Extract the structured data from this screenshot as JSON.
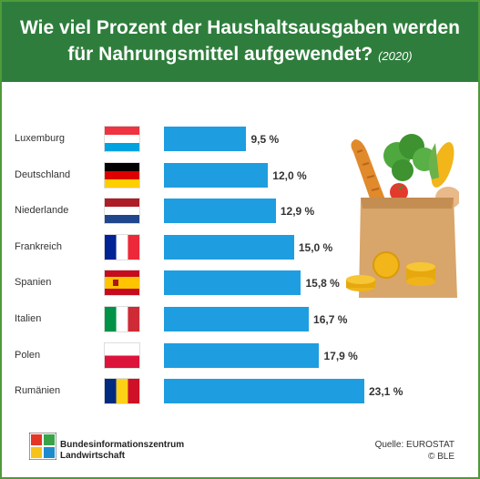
{
  "header": {
    "title_line1": "Wie viel Prozent der Haushaltsausgaben werden",
    "title_line2": "für Nahrungsmittel aufgewendet?",
    "year": "(2020)"
  },
  "chart_data": {
    "type": "bar",
    "orientation": "horizontal",
    "title": "Wie viel Prozent der Haushaltsausgaben werden für Nahrungsmittel aufgewendet? (2020)",
    "categories": [
      "Luxemburg",
      "Deutschland",
      "Niederlande",
      "Frankreich",
      "Spanien",
      "Italien",
      "Polen",
      "Rumänien"
    ],
    "values": [
      9.5,
      12.0,
      12.9,
      15.0,
      15.8,
      16.7,
      17.9,
      23.1
    ],
    "value_labels": [
      "9,5 %",
      "12,0 %",
      "12,9 %",
      "15,0 %",
      "15,8 %",
      "16,7 %",
      "17,9 %",
      "23,1 %"
    ],
    "unit": "%",
    "bar_color": "#1e9ee0",
    "xlim": [
      0,
      23.1
    ],
    "grid": false
  },
  "flags": [
    {
      "country": "Luxemburg",
      "icon": "luxembourg-flag-icon",
      "stripes": "horizontal",
      "colors": [
        "#ef3340",
        "#ffffff",
        "#00a3e0"
      ]
    },
    {
      "country": "Deutschland",
      "icon": "germany-flag-icon",
      "stripes": "horizontal",
      "colors": [
        "#000000",
        "#dd0000",
        "#ffce00"
      ]
    },
    {
      "country": "Niederlande",
      "icon": "netherlands-flag-icon",
      "stripes": "horizontal",
      "colors": [
        "#ae1c28",
        "#ffffff",
        "#21468b"
      ]
    },
    {
      "country": "Frankreich",
      "icon": "france-flag-icon",
      "stripes": "vertical",
      "colors": [
        "#002395",
        "#ffffff",
        "#ed2939"
      ]
    },
    {
      "country": "Spanien",
      "icon": "spain-flag-icon",
      "stripes": "spain",
      "colors": [
        "#c60b1e",
        "#ffc400",
        "#c60b1e"
      ]
    },
    {
      "country": "Italien",
      "icon": "italy-flag-icon",
      "stripes": "vertical",
      "colors": [
        "#009246",
        "#ffffff",
        "#ce2b37"
      ]
    },
    {
      "country": "Polen",
      "icon": "poland-flag-icon",
      "stripes": "horizontal2",
      "colors": [
        "#ffffff",
        "#dc143c"
      ]
    },
    {
      "country": "Rumänien",
      "icon": "romania-flag-icon",
      "stripes": "vertical",
      "colors": [
        "#002b7f",
        "#fcd116",
        "#ce1126"
      ]
    }
  ],
  "footer": {
    "org_line1": "Bundesinformationszentrum",
    "org_line2": "Landwirtschaft",
    "source_line1": "Quelle: EUROSTAT",
    "source_line2": "© BLE"
  },
  "colors": {
    "header_bg": "#2e7d3c",
    "frame": "#4f9a3a",
    "bar": "#1e9ee0"
  },
  "illustration": "grocery-bag-icon"
}
